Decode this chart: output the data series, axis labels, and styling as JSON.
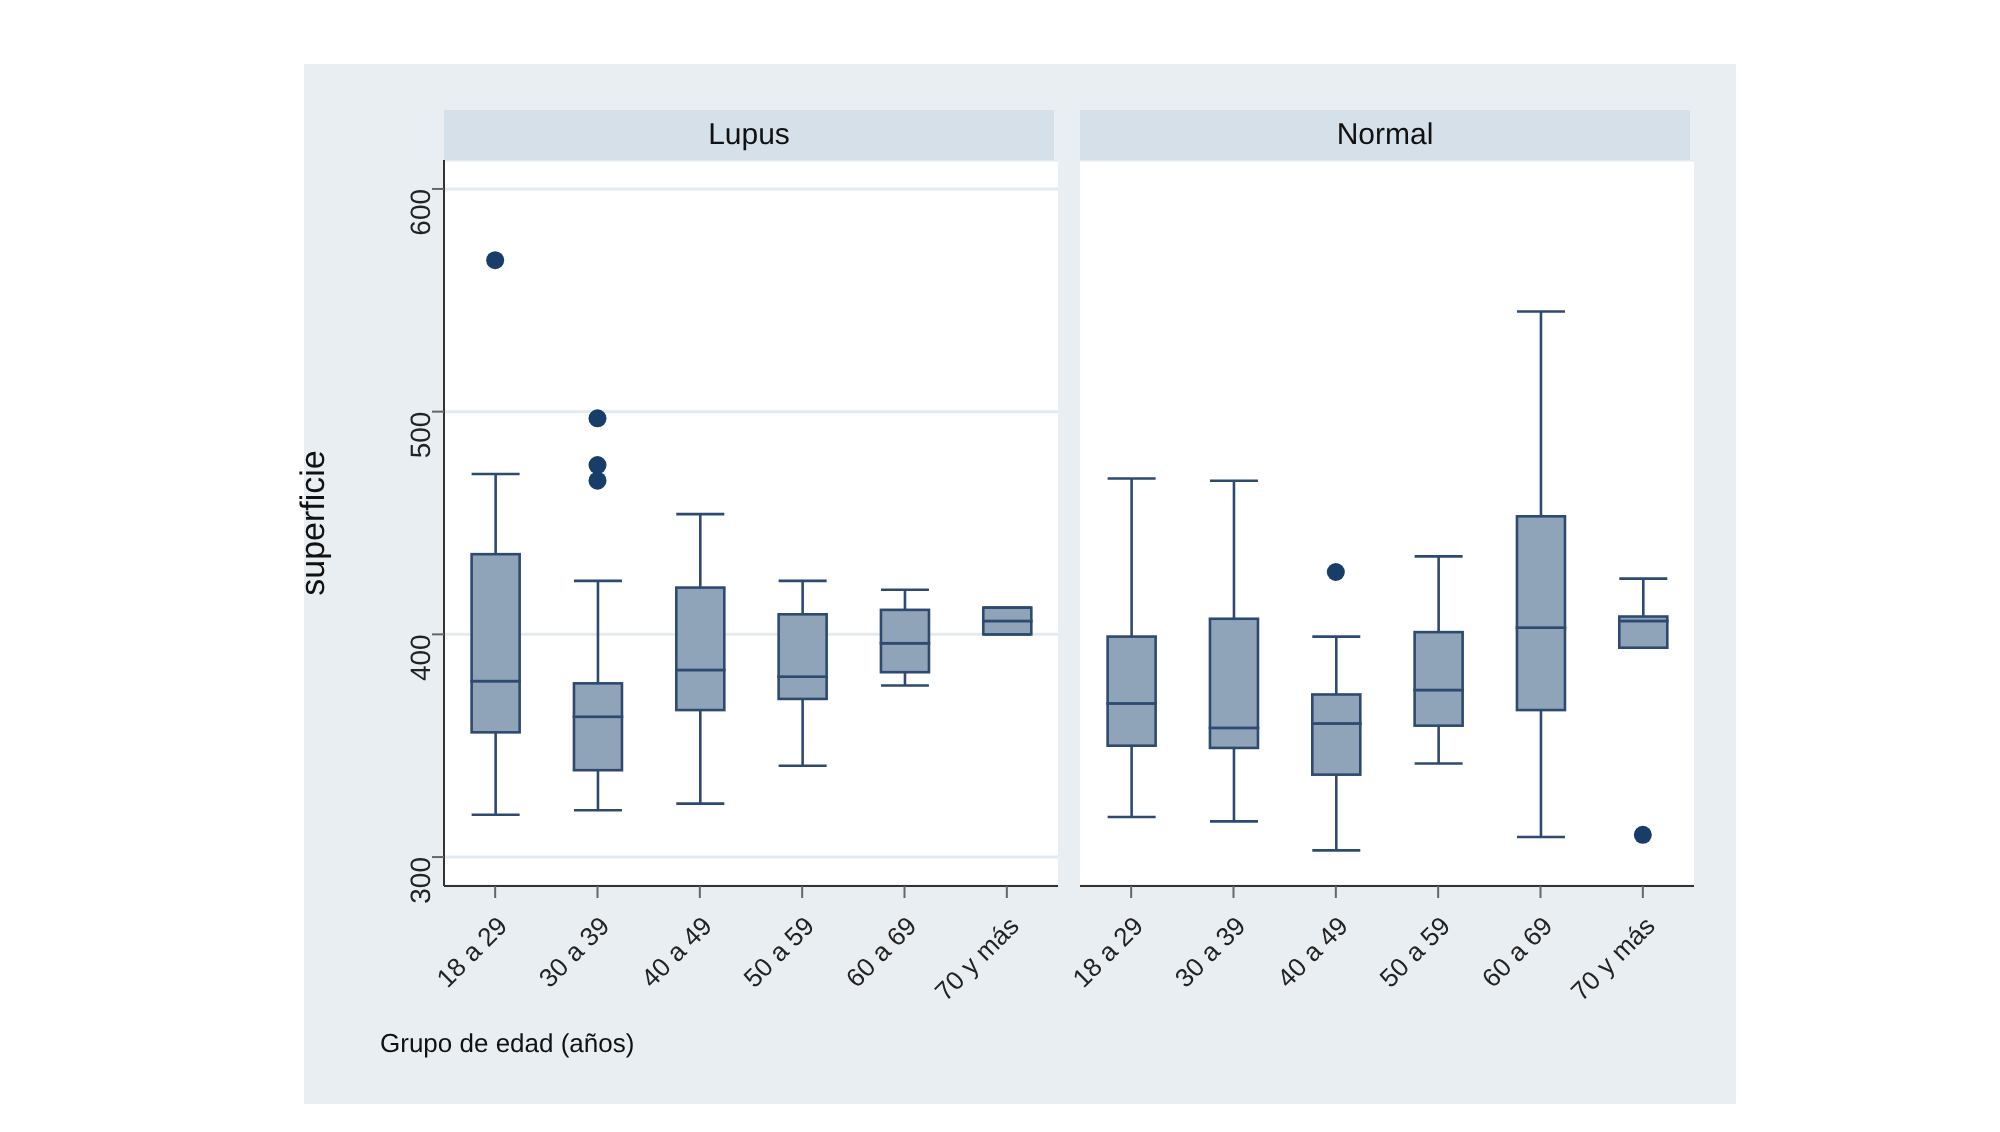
{
  "chart_data": [
    {
      "type": "box",
      "title": "Lupus",
      "ylabel": "superficie",
      "xlabel": "Grupo de edad (años)",
      "categories": [
        "18 a 29",
        "30 a 39",
        "40 a 49",
        "50 a 59",
        "60 a 69",
        "70 y más"
      ],
      "ylim": [
        287,
        613
      ],
      "yticks": [
        300,
        400,
        500,
        600
      ],
      "grid": "y",
      "series": [
        {
          "color": "#8fa3b9",
          "boxes": [
            {
              "low": 319,
              "q1": 356,
              "median": 379,
              "q3": 436,
              "high": 472,
              "outliers": [
                568
              ]
            },
            {
              "low": 321,
              "q1": 339,
              "median": 363,
              "q3": 378,
              "high": 424,
              "outliers": [
                497,
                476,
                469
              ]
            },
            {
              "low": 324,
              "q1": 366,
              "median": 384,
              "q3": 421,
              "high": 454
            },
            {
              "low": 341,
              "q1": 371,
              "median": 381,
              "q3": 409,
              "high": 424
            },
            {
              "low": 377,
              "q1": 383,
              "median": 396,
              "q3": 411,
              "high": 420
            },
            {
              "low": 400,
              "q1": 400,
              "median": 406,
              "q3": 412,
              "high": 412
            }
          ]
        }
      ]
    },
    {
      "type": "box",
      "title": "Normal",
      "categories": [
        "18 a 29",
        "30 a 39",
        "40 a 49",
        "50 a 59",
        "60 a 69",
        "70 y más"
      ],
      "ylim": [
        287,
        613
      ],
      "yticks": [
        300,
        400,
        500,
        600
      ],
      "grid": "y",
      "tick_labels": "x",
      "series": [
        {
          "color": "#8fa3b9",
          "boxes": [
            {
              "low": 318,
              "q1": 350,
              "median": 369,
              "q3": 399,
              "high": 470
            },
            {
              "low": 316,
              "q1": 349,
              "median": 358,
              "q3": 407,
              "high": 469
            },
            {
              "low": 303,
              "q1": 337,
              "median": 360,
              "q3": 373,
              "high": 399,
              "outliers": [
                428
              ]
            },
            {
              "low": 342,
              "q1": 359,
              "median": 375,
              "q3": 401,
              "high": 435
            },
            {
              "low": 309,
              "q1": 366,
              "median": 403,
              "q3": 453,
              "high": 545
            },
            {
              "low": 394,
              "q1": 394,
              "median": 406,
              "q3": 408,
              "high": 425,
              "outliers": [
                310
              ]
            }
          ]
        }
      ]
    }
  ]
}
